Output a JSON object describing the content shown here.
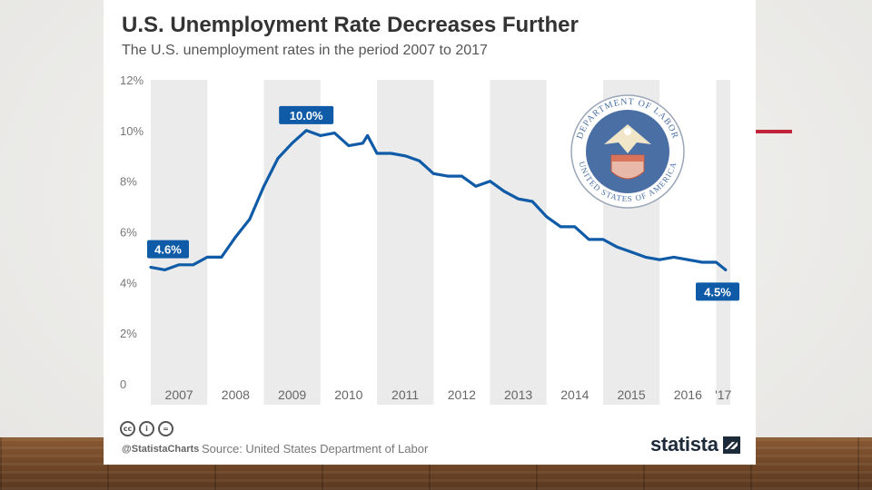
{
  "slide": {
    "accent_color": "#c0243a"
  },
  "card": {
    "title": "U.S. Unemployment Rate Decreases Further",
    "subtitle": "The U.S. unemployment rates in the period 2007 to 2017",
    "footer": {
      "handle": "@StatistaCharts",
      "source": "Source: United States Department of Labor",
      "brand": "statista",
      "license_icons": [
        "cc-icon",
        "attribution-icon",
        "no-derivatives-icon"
      ],
      "license_glyphs": [
        "cc",
        "i",
        "="
      ]
    }
  },
  "seal": {
    "top_text": "DEPARTMENT OF LABOR",
    "bottom_text": "UNITED STATES OF AMERICA"
  },
  "chart_data": {
    "type": "line",
    "title": "U.S. Unemployment Rate Decreases Further",
    "subtitle": "The U.S. unemployment rates in the period 2007 to 2017",
    "x_tick_labels": [
      "2007",
      "2008",
      "2009",
      "2010",
      "2011",
      "2012",
      "2013",
      "2014",
      "2015",
      "2016",
      "'17"
    ],
    "y_tick_labels": [
      "0",
      "2%",
      "4%",
      "6%",
      "8%",
      "10%",
      "12%"
    ],
    "y_ticks": [
      0,
      2,
      4,
      6,
      8,
      10,
      12
    ],
    "ylim": [
      0,
      12
    ],
    "xlim": [
      "2007-01",
      "2017-04"
    ],
    "grid": "alternating year bands",
    "line_color": "#0f5ba7",
    "band_color": "#ebebeb",
    "annotations": [
      {
        "text": "4.6%",
        "x": "2007-01",
        "y": 4.6
      },
      {
        "text": "10.0%",
        "x": "2009-10",
        "y": 10.0
      },
      {
        "text": "4.5%",
        "x": "2017-03",
        "y": 4.5
      }
    ],
    "series": [
      {
        "values": [
          {
            "x": "2007-01",
            "y": 4.6
          },
          {
            "x": "2007-04",
            "y": 4.5
          },
          {
            "x": "2007-07",
            "y": 4.7
          },
          {
            "x": "2007-10",
            "y": 4.7
          },
          {
            "x": "2008-01",
            "y": 5.0
          },
          {
            "x": "2008-04",
            "y": 5.0
          },
          {
            "x": "2008-07",
            "y": 5.8
          },
          {
            "x": "2008-10",
            "y": 6.5
          },
          {
            "x": "2009-01",
            "y": 7.8
          },
          {
            "x": "2009-04",
            "y": 8.9
          },
          {
            "x": "2009-07",
            "y": 9.5
          },
          {
            "x": "2009-10",
            "y": 10.0
          },
          {
            "x": "2010-01",
            "y": 9.8
          },
          {
            "x": "2010-04",
            "y": 9.9
          },
          {
            "x": "2010-07",
            "y": 9.4
          },
          {
            "x": "2010-10",
            "y": 9.5
          },
          {
            "x": "2010-11",
            "y": 9.8
          },
          {
            "x": "2011-01",
            "y": 9.1
          },
          {
            "x": "2011-04",
            "y": 9.1
          },
          {
            "x": "2011-07",
            "y": 9.0
          },
          {
            "x": "2011-10",
            "y": 8.8
          },
          {
            "x": "2012-01",
            "y": 8.3
          },
          {
            "x": "2012-04",
            "y": 8.2
          },
          {
            "x": "2012-07",
            "y": 8.2
          },
          {
            "x": "2012-10",
            "y": 7.8
          },
          {
            "x": "2013-01",
            "y": 8.0
          },
          {
            "x": "2013-04",
            "y": 7.6
          },
          {
            "x": "2013-07",
            "y": 7.3
          },
          {
            "x": "2013-10",
            "y": 7.2
          },
          {
            "x": "2014-01",
            "y": 6.6
          },
          {
            "x": "2014-04",
            "y": 6.2
          },
          {
            "x": "2014-07",
            "y": 6.2
          },
          {
            "x": "2014-10",
            "y": 5.7
          },
          {
            "x": "2015-01",
            "y": 5.7
          },
          {
            "x": "2015-04",
            "y": 5.4
          },
          {
            "x": "2015-07",
            "y": 5.2
          },
          {
            "x": "2015-10",
            "y": 5.0
          },
          {
            "x": "2016-01",
            "y": 4.9
          },
          {
            "x": "2016-04",
            "y": 5.0
          },
          {
            "x": "2016-07",
            "y": 4.9
          },
          {
            "x": "2016-10",
            "y": 4.8
          },
          {
            "x": "2017-01",
            "y": 4.8
          },
          {
            "x": "2017-03",
            "y": 4.5
          }
        ]
      }
    ]
  }
}
